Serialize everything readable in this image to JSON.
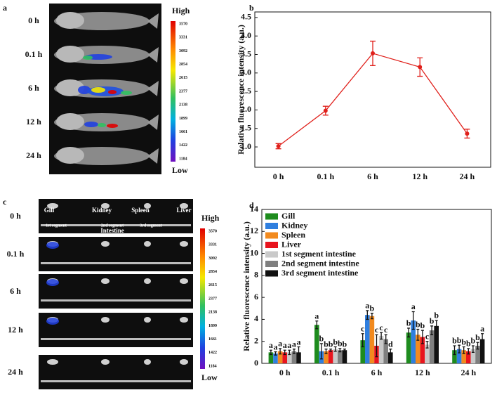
{
  "panel_a": {
    "panel_label": "a",
    "rows": [
      "0 h",
      "0.1 h",
      "6 h",
      "12 h",
      "24 h"
    ],
    "scale_high": "High",
    "scale_low": "Low",
    "colorbar_ticks": [
      3570,
      3331,
      3092,
      2854,
      2615,
      2377,
      2138,
      1899,
      1661,
      1422,
      1184
    ]
  },
  "panel_c": {
    "panel_label": "c",
    "rows": [
      "0 h",
      "0.1 h",
      "6 h",
      "12 h",
      "24 h"
    ],
    "organs": [
      "Gill",
      "Kidney",
      "Spleen",
      "Liver"
    ],
    "intestine_segments": [
      "1st segment",
      "2nd segment",
      "3rd segment"
    ],
    "intestine": "Intestine",
    "scale_high": "High",
    "scale_low": "Low",
    "colorbar_ticks": [
      3570,
      3331,
      3092,
      2854,
      2615,
      2377,
      2138,
      1899,
      1661,
      1422,
      1184
    ]
  },
  "chart_data": [
    {
      "type": "line",
      "panel_label": "b",
      "y_label": "Relative fluorescence intensity (a.u.)",
      "categories": [
        "0 h",
        "0.1 h",
        "6 h",
        "12 h",
        "24 h"
      ],
      "values": [
        1.02,
        1.98,
        3.53,
        3.16,
        1.36
      ],
      "errors": [
        0.07,
        0.12,
        0.33,
        0.25,
        0.12
      ],
      "color": "#e0201b",
      "ylim": [
        0.45,
        4.65
      ],
      "yticks": [
        {
          "value": 1,
          "label": "1.0"
        },
        1.5,
        {
          "value": 2,
          "label": "2.0"
        },
        2.5,
        {
          "value": 3,
          "label": "3.0"
        },
        3.5,
        {
          "value": 4,
          "label": "4.0"
        },
        4.5
      ]
    },
    {
      "type": "bar",
      "panel_label": "d",
      "y_label": "Relative fluorescence intensity (a.u.)",
      "categories": [
        "0 h",
        "0.1 h",
        "6 h",
        "12 h",
        "24 h"
      ],
      "ylim": [
        0,
        14
      ],
      "yticks": [
        0,
        2,
        4,
        6,
        8,
        10,
        12,
        14
      ],
      "legend": "top-left",
      "series": [
        {
          "name": "Gill",
          "color": "#1e8c1e",
          "values": [
            1.0,
            3.5,
            2.1,
            2.8,
            1.2
          ],
          "errors": [
            0.2,
            0.35,
            0.6,
            0.4,
            0.4
          ],
          "letters": [
            "a",
            "a",
            "c",
            "b",
            "b"
          ]
        },
        {
          "name": "Kidney",
          "color": "#2f7fdf",
          "values": [
            0.9,
            1.1,
            4.4,
            3.9,
            1.3
          ],
          "errors": [
            0.15,
            0.7,
            0.4,
            0.8,
            0.35
          ],
          "letters": [
            "a",
            "b",
            "a",
            "a",
            "b"
          ]
        },
        {
          "name": "Spleen",
          "color": "#f28a1e",
          "values": [
            1.1,
            1.1,
            4.3,
            2.6,
            1.2
          ],
          "errors": [
            0.25,
            0.2,
            0.25,
            0.5,
            0.3
          ],
          "letters": [
            "a",
            "b",
            "b",
            "b",
            "b"
          ]
        },
        {
          "name": "Liver",
          "color": "#e8141e",
          "values": [
            1.0,
            1.2,
            1.6,
            2.4,
            1.1
          ],
          "errors": [
            0.2,
            0.1,
            1.0,
            0.6,
            0.25
          ],
          "letters": [
            "a",
            "b",
            "c",
            "b",
            "b"
          ]
        },
        {
          "name": "1st segment intestine",
          "color": "#c9c9c9",
          "values": [
            1.0,
            1.3,
            2.5,
            1.7,
            1.3
          ],
          "errors": [
            0.2,
            0.2,
            0.3,
            0.3,
            0.3
          ],
          "letters": [
            "a",
            "b",
            "c",
            "c",
            "b"
          ]
        },
        {
          "name": "2nd segment intestine",
          "color": "#7f7f7f",
          "values": [
            1.1,
            1.2,
            2.2,
            3.0,
            1.6
          ],
          "errors": [
            0.2,
            0.15,
            0.4,
            0.4,
            0.3
          ],
          "letters": [
            "a",
            "b",
            "c",
            "b",
            "b"
          ]
        },
        {
          "name": "3rd segment intestine",
          "color": "#111111",
          "values": [
            1.0,
            1.2,
            1.0,
            3.4,
            2.2
          ],
          "errors": [
            0.5,
            0.1,
            0.3,
            0.5,
            0.5
          ],
          "letters": [
            "a",
            "b",
            "d",
            "b",
            "a"
          ]
        }
      ]
    }
  ]
}
